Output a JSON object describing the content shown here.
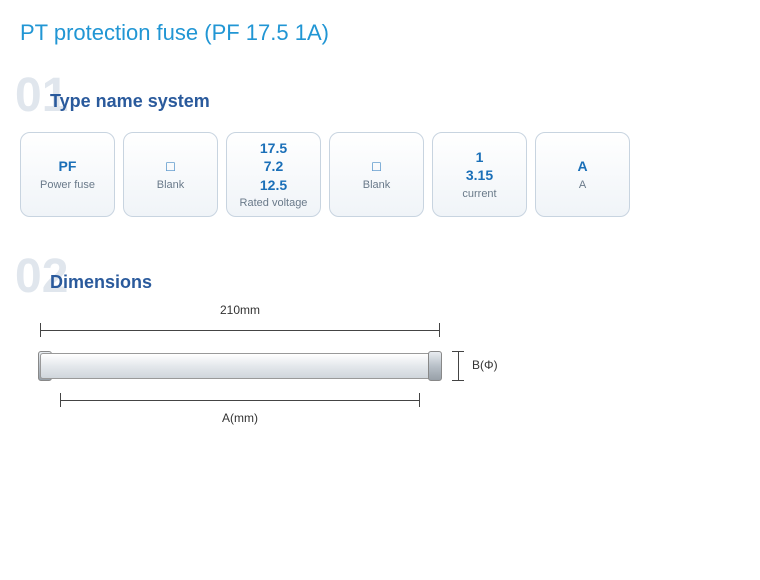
{
  "title": "PT protection fuse (PF 17.5 1A)",
  "sections": [
    {
      "number": "01",
      "title": "Type name system"
    },
    {
      "number": "02",
      "title": "Dimensions"
    }
  ],
  "typeCards": [
    {
      "main": "PF",
      "sub": "Power fuse"
    },
    {
      "main": "□",
      "sub": "Blank"
    },
    {
      "main": "17.5\n7.2\n12.5",
      "sub": "Rated voltage"
    },
    {
      "main": "□",
      "sub": "Blank"
    },
    {
      "main": "1\n3.15",
      "sub": "current"
    },
    {
      "main": "A",
      "sub": "A"
    }
  ],
  "dimensions": {
    "topLabel": "210mm",
    "rightLabel": "B(Φ)",
    "bottomLabel": "A(mm)"
  },
  "colors": {
    "titleColor": "#2196d4",
    "sectionNumberColor": "#e0e6ed",
    "sectionTitleColor": "#2a5a9c",
    "cardMainColor": "#1a6fb8",
    "cardSubColor": "#6a7a8a",
    "cardBorder": "#c8d4e0"
  }
}
